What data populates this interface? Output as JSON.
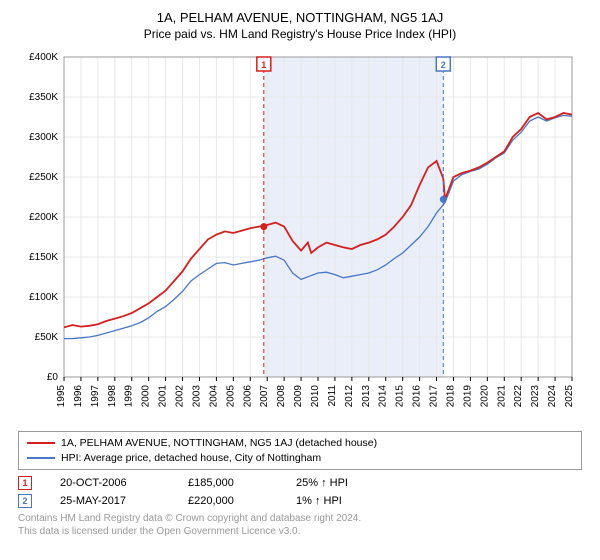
{
  "title": "1A, PELHAM AVENUE, NOTTINGHAM, NG5 1AJ",
  "subtitle": "Price paid vs. HM Land Registry's House Price Index (HPI)",
  "chart": {
    "type": "line",
    "background_color": "#ffffff",
    "plot_border_color": "#999999",
    "grid_color": "#e8e8e8",
    "highlight_band": {
      "x_start": 2006.8,
      "x_end": 2017.4,
      "fill_color": "#e9eef9"
    },
    "x_axis": {
      "lim": [
        1995,
        2025
      ],
      "ticks": [
        1995,
        1996,
        1997,
        1998,
        1999,
        2000,
        2001,
        2002,
        2003,
        2004,
        2005,
        2006,
        2007,
        2008,
        2009,
        2010,
        2011,
        2012,
        2013,
        2014,
        2015,
        2016,
        2017,
        2018,
        2019,
        2020,
        2021,
        2022,
        2023,
        2024,
        2025
      ],
      "tick_labels_rotated": true,
      "tick_fontsize": 10
    },
    "y_axis": {
      "lim": [
        0,
        400000
      ],
      "ticks": [
        0,
        50000,
        100000,
        150000,
        200000,
        250000,
        300000,
        350000,
        400000
      ],
      "tick_labels": [
        "£0",
        "£50K",
        "£100K",
        "£150K",
        "£200K",
        "£250K",
        "£300K",
        "£350K",
        "£400K"
      ],
      "tick_fontsize": 10
    },
    "series": [
      {
        "name": "subject_property",
        "label": "1A, PELHAM AVENUE, NOTTINGHAM, NG5 1AJ (detached house)",
        "color": "#d32020",
        "line_width": 1.8,
        "data": [
          [
            1995,
            62000
          ],
          [
            1995.5,
            65000
          ],
          [
            1996,
            63000
          ],
          [
            1996.5,
            64000
          ],
          [
            1997,
            66000
          ],
          [
            1997.5,
            70000
          ],
          [
            1998,
            73000
          ],
          [
            1998.5,
            76000
          ],
          [
            1999,
            80000
          ],
          [
            1999.5,
            86000
          ],
          [
            2000,
            92000
          ],
          [
            2000.5,
            100000
          ],
          [
            2001,
            108000
          ],
          [
            2001.5,
            120000
          ],
          [
            2002,
            132000
          ],
          [
            2002.5,
            148000
          ],
          [
            2003,
            160000
          ],
          [
            2003.5,
            172000
          ],
          [
            2004,
            178000
          ],
          [
            2004.5,
            182000
          ],
          [
            2005,
            180000
          ],
          [
            2005.5,
            183000
          ],
          [
            2006,
            186000
          ],
          [
            2006.5,
            188000
          ],
          [
            2007,
            190000
          ],
          [
            2007.5,
            193000
          ],
          [
            2008,
            188000
          ],
          [
            2008.5,
            170000
          ],
          [
            2009,
            158000
          ],
          [
            2009.4,
            168000
          ],
          [
            2009.6,
            155000
          ],
          [
            2010,
            162000
          ],
          [
            2010.5,
            168000
          ],
          [
            2011,
            165000
          ],
          [
            2011.5,
            162000
          ],
          [
            2012,
            160000
          ],
          [
            2012.5,
            165000
          ],
          [
            2013,
            168000
          ],
          [
            2013.5,
            172000
          ],
          [
            2014,
            178000
          ],
          [
            2014.5,
            188000
          ],
          [
            2015,
            200000
          ],
          [
            2015.5,
            215000
          ],
          [
            2016,
            240000
          ],
          [
            2016.5,
            262000
          ],
          [
            2017,
            270000
          ],
          [
            2017.4,
            248000
          ],
          [
            2017.5,
            222000
          ],
          [
            2018,
            250000
          ],
          [
            2018.5,
            255000
          ],
          [
            2019,
            258000
          ],
          [
            2019.5,
            262000
          ],
          [
            2020,
            268000
          ],
          [
            2020.5,
            275000
          ],
          [
            2021,
            282000
          ],
          [
            2021.5,
            300000
          ],
          [
            2022,
            310000
          ],
          [
            2022.5,
            325000
          ],
          [
            2023,
            330000
          ],
          [
            2023.5,
            322000
          ],
          [
            2024,
            325000
          ],
          [
            2024.5,
            330000
          ],
          [
            2025,
            328000
          ]
        ]
      },
      {
        "name": "hpi",
        "label": "HPI: Average price, detached house, City of Nottingham",
        "color": "#4a76c7",
        "line_width": 1.3,
        "data": [
          [
            1995,
            48000
          ],
          [
            1995.5,
            48000
          ],
          [
            1996,
            49000
          ],
          [
            1996.5,
            50000
          ],
          [
            1997,
            52000
          ],
          [
            1997.5,
            55000
          ],
          [
            1998,
            58000
          ],
          [
            1998.5,
            61000
          ],
          [
            1999,
            64000
          ],
          [
            1999.5,
            68000
          ],
          [
            2000,
            74000
          ],
          [
            2000.5,
            82000
          ],
          [
            2001,
            88000
          ],
          [
            2001.5,
            97000
          ],
          [
            2002,
            107000
          ],
          [
            2002.5,
            120000
          ],
          [
            2003,
            128000
          ],
          [
            2003.5,
            135000
          ],
          [
            2004,
            142000
          ],
          [
            2004.5,
            143000
          ],
          [
            2005,
            140000
          ],
          [
            2005.5,
            142000
          ],
          [
            2006,
            144000
          ],
          [
            2006.5,
            146000
          ],
          [
            2007,
            149000
          ],
          [
            2007.5,
            151000
          ],
          [
            2008,
            146000
          ],
          [
            2008.5,
            130000
          ],
          [
            2009,
            122000
          ],
          [
            2009.5,
            126000
          ],
          [
            2010,
            130000
          ],
          [
            2010.5,
            131000
          ],
          [
            2011,
            128000
          ],
          [
            2011.5,
            124000
          ],
          [
            2012,
            126000
          ],
          [
            2012.5,
            128000
          ],
          [
            2013,
            130000
          ],
          [
            2013.5,
            134000
          ],
          [
            2014,
            140000
          ],
          [
            2014.5,
            148000
          ],
          [
            2015,
            155000
          ],
          [
            2015.5,
            165000
          ],
          [
            2016,
            175000
          ],
          [
            2016.5,
            188000
          ],
          [
            2017,
            205000
          ],
          [
            2017.5,
            218000
          ],
          [
            2018,
            245000
          ],
          [
            2018.5,
            253000
          ],
          [
            2019,
            257000
          ],
          [
            2019.5,
            260000
          ],
          [
            2020,
            266000
          ],
          [
            2020.5,
            274000
          ],
          [
            2021,
            280000
          ],
          [
            2021.5,
            296000
          ],
          [
            2022,
            306000
          ],
          [
            2022.5,
            320000
          ],
          [
            2023,
            325000
          ],
          [
            2023.5,
            320000
          ],
          [
            2024,
            324000
          ],
          [
            2024.5,
            327000
          ],
          [
            2025,
            326000
          ]
        ]
      }
    ],
    "event_markers": [
      {
        "id": "1",
        "x": 2006.8,
        "y": 188000,
        "color": "#d32020",
        "line_dash": "4,3",
        "label_y_position": "top",
        "dot_color": "#d32020"
      },
      {
        "id": "2",
        "x": 2017.4,
        "y": 222000,
        "color": "#4a76c7",
        "line_dash": "4,3",
        "label_y_position": "top",
        "dot_color": "#4a76c7"
      }
    ]
  },
  "legend": {
    "rows": [
      {
        "swatch_color": "#d32020",
        "text": "1A, PELHAM AVENUE, NOTTINGHAM, NG5 1AJ (detached house)"
      },
      {
        "swatch_color": "#4a76c7",
        "text": "HPI: Average price, detached house, City of Nottingham"
      }
    ]
  },
  "events": [
    {
      "badge": "1",
      "badge_color": "#d32020",
      "date": "20-OCT-2006",
      "price": "£185,000",
      "delta": "25% ↑ HPI"
    },
    {
      "badge": "2",
      "badge_color": "#4a76c7",
      "date": "25-MAY-2017",
      "price": "£220,000",
      "delta": "1% ↑ HPI"
    }
  ],
  "attribution": {
    "line1": "Contains HM Land Registry data © Crown copyright and database right 2024.",
    "line2": "This data is licensed under the Open Government Licence v3.0."
  }
}
